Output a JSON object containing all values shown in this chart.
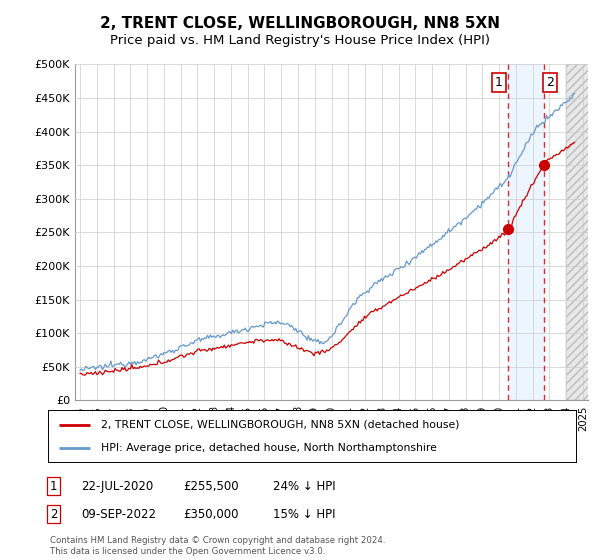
{
  "title": "2, TRENT CLOSE, WELLINGBOROUGH, NN8 5XN",
  "subtitle": "Price paid vs. HM Land Registry's House Price Index (HPI)",
  "ylabel_ticks": [
    "£0",
    "£50K",
    "£100K",
    "£150K",
    "£200K",
    "£250K",
    "£300K",
    "£350K",
    "£400K",
    "£450K",
    "£500K"
  ],
  "ytick_values": [
    0,
    50000,
    100000,
    150000,
    200000,
    250000,
    300000,
    350000,
    400000,
    450000,
    500000
  ],
  "ylim": [
    0,
    500000
  ],
  "x_start_year": 1995,
  "x_end_year": 2025,
  "hpi_color": "#6699cc",
  "property_color": "#cc0000",
  "sale1_price": 255500,
  "sale1_year": 2020.55,
  "sale2_price": 350000,
  "sale2_year": 2022.69,
  "legend_line1": "2, TRENT CLOSE, WELLINGBOROUGH, NN8 5XN (detached house)",
  "legend_line2": "HPI: Average price, detached house, North Northamptonshire",
  "footer": "Contains HM Land Registry data © Crown copyright and database right 2024.\nThis data is licensed under the Open Government Licence v3.0.",
  "background_color": "#ffffff",
  "grid_color": "#cccccc",
  "vline1_color": "#cc0000",
  "vline2_color": "#cc0000",
  "vline_style": "--",
  "shaded_region_color": "#ddeeff",
  "shaded_region_alpha": 0.5,
  "hatch_region_color": "#dddddd",
  "title_fontsize": 11,
  "subtitle_fontsize": 9.5
}
